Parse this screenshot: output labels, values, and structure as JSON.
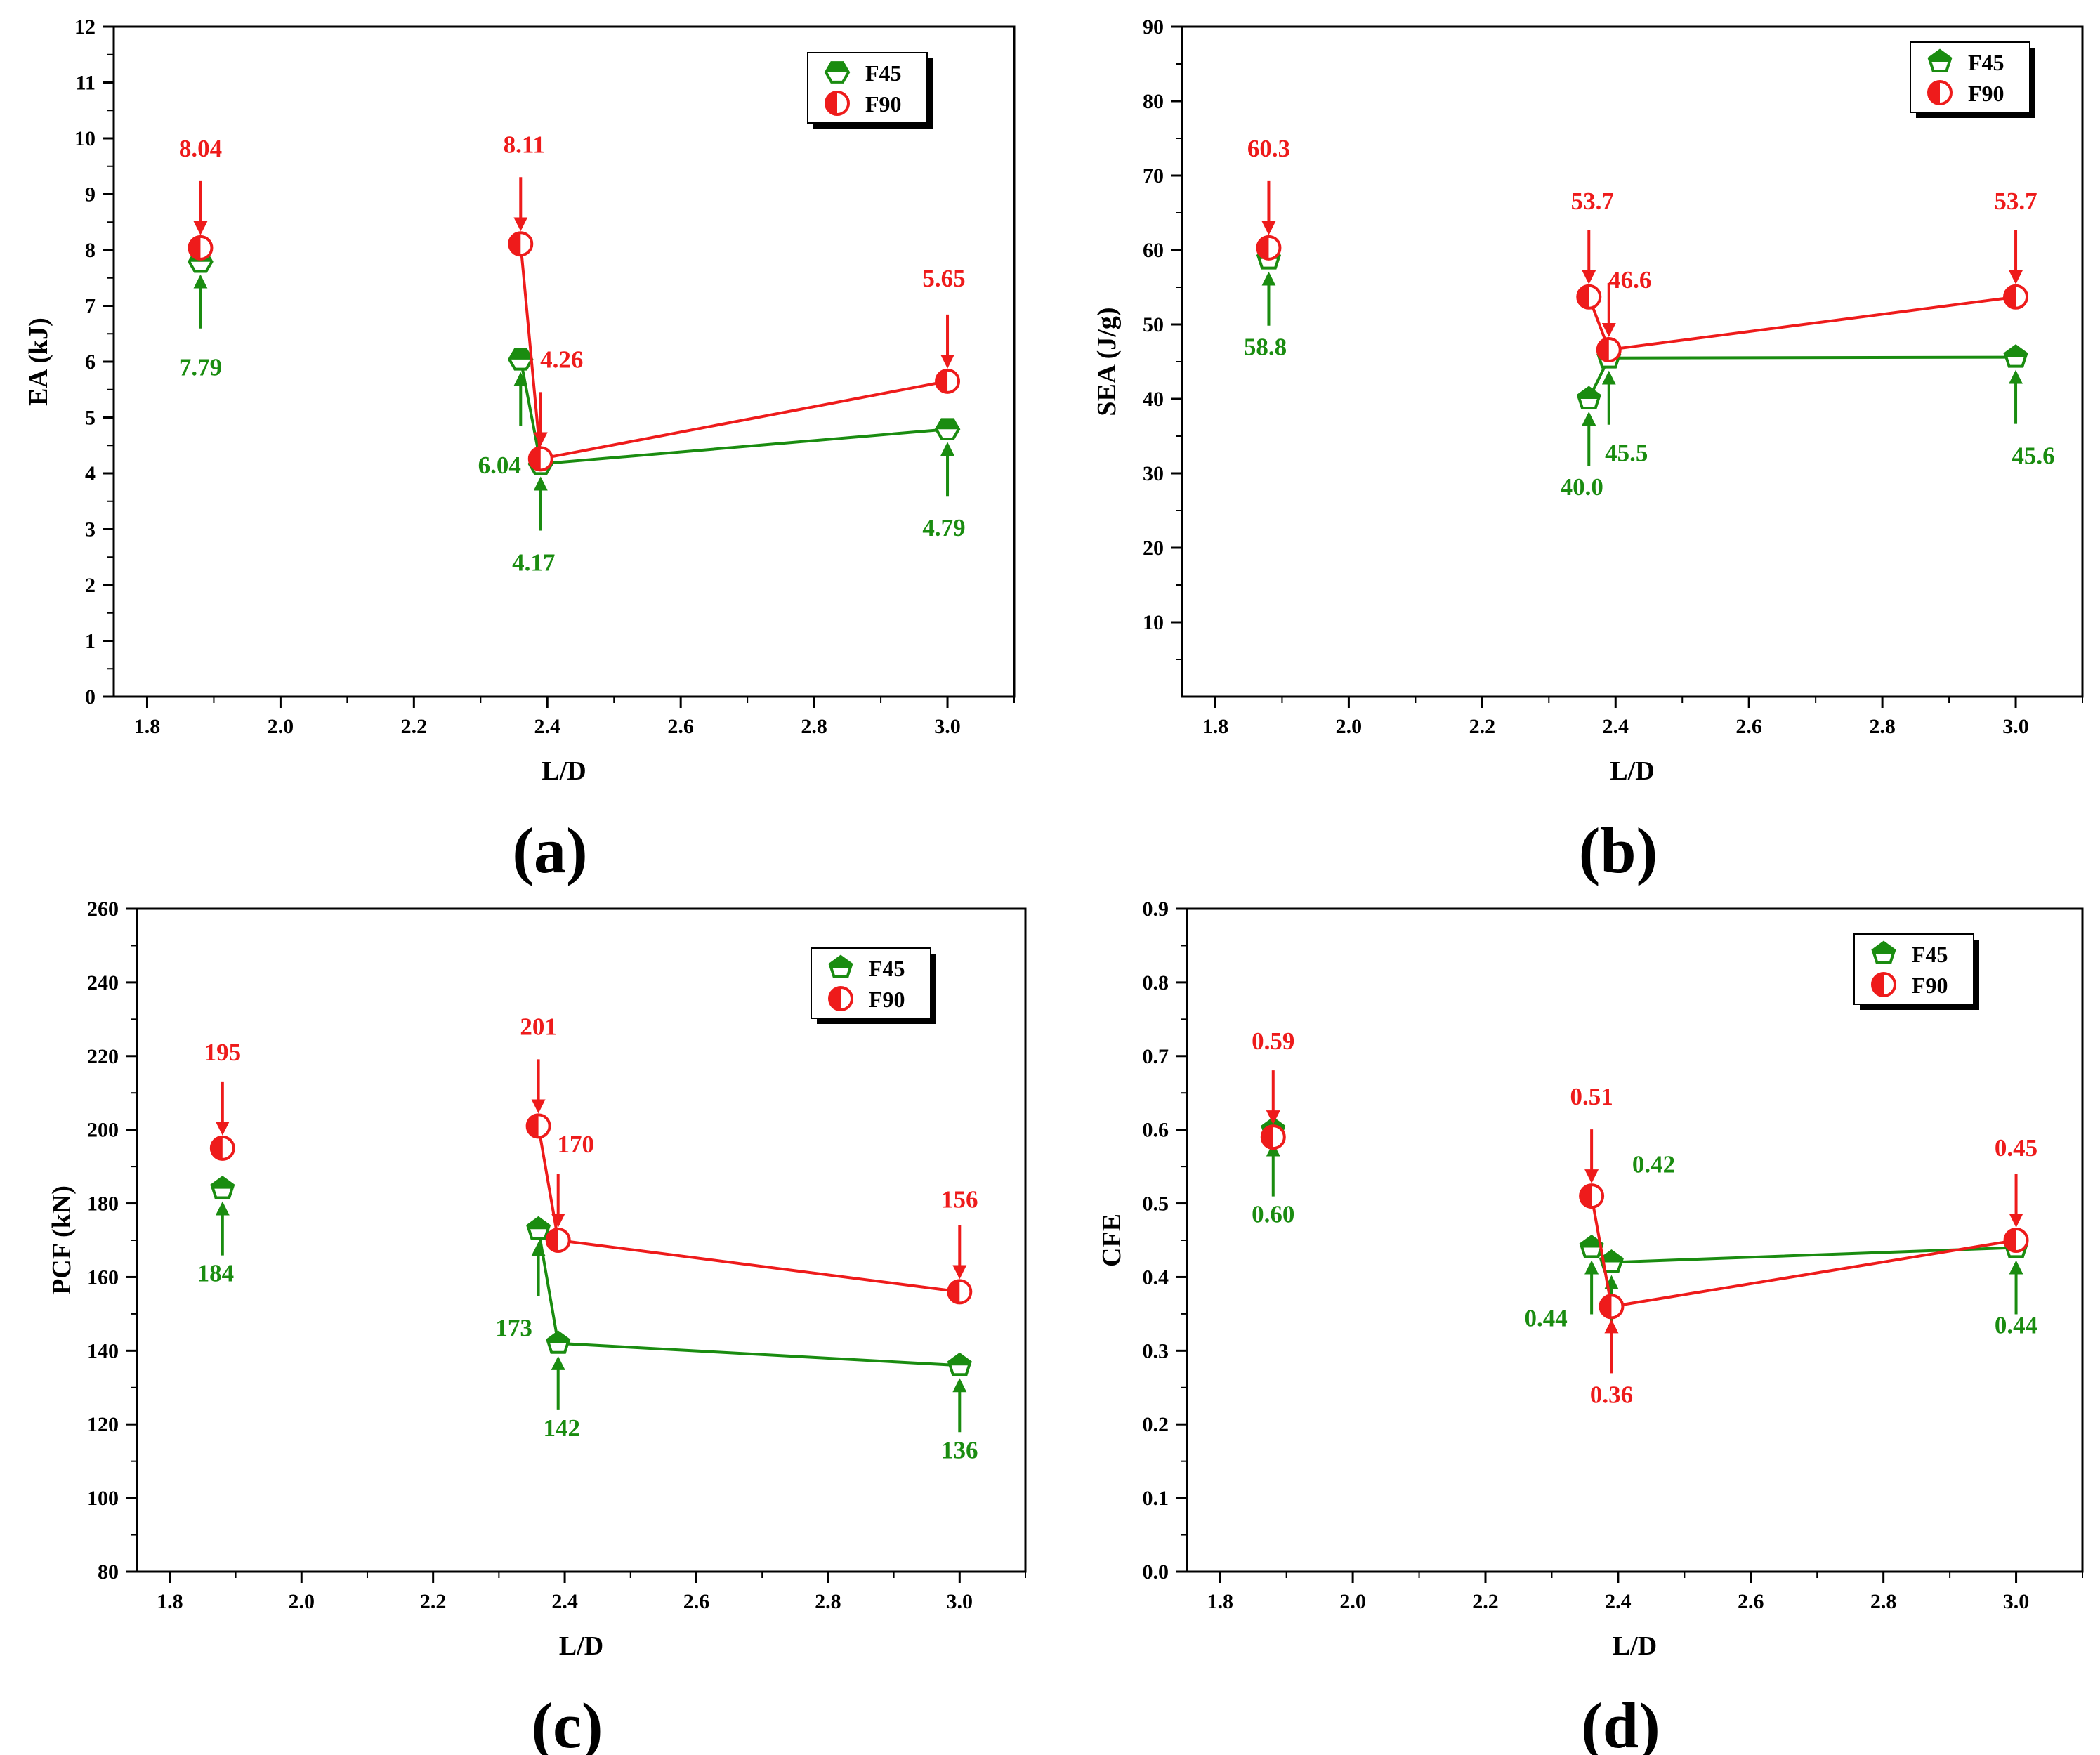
{
  "colors": {
    "F45": "#1a8c10",
    "F90": "#ee1b1b"
  },
  "chart_data": [
    {
      "type": "line",
      "panel_label": "(a)",
      "xlabel": "L/D",
      "ylabel": "EA (kJ)",
      "xlim": [
        1.75,
        3.1
      ],
      "ylim": [
        0,
        12
      ],
      "x_ticks": [
        "1.8",
        "2.0",
        "2.2",
        "2.4",
        "2.6",
        "2.8",
        "3.0"
      ],
      "y_ticks": [
        "0",
        "1",
        "2",
        "3",
        "4",
        "5",
        "6",
        "7",
        "8",
        "9",
        "10",
        "11",
        "12"
      ],
      "legend": [
        "F45",
        "F90"
      ],
      "series": [
        {
          "name": "F45",
          "marker": "hexagon",
          "x": [
            1.88,
            2.36,
            2.39,
            3.0
          ],
          "values": [
            7.79,
            6.04,
            4.17,
            4.79
          ],
          "labels": [
            "7.79",
            "6.04",
            "4.17",
            "4.79"
          ]
        },
        {
          "name": "F90",
          "marker": "circle",
          "x": [
            1.88,
            2.36,
            2.39,
            3.0
          ],
          "values": [
            8.04,
            8.11,
            4.26,
            5.65
          ],
          "labels": [
            "8.04",
            "8.11",
            "4.26",
            "5.65"
          ]
        }
      ]
    },
    {
      "type": "line",
      "panel_label": "(b)",
      "xlabel": "L/D",
      "ylabel": "SEA (J/g)",
      "xlim": [
        1.75,
        3.1
      ],
      "ylim": [
        0,
        90
      ],
      "x_ticks": [
        "1.8",
        "2.0",
        "2.2",
        "2.4",
        "2.6",
        "2.8",
        "3.0"
      ],
      "y_ticks": [
        "10",
        "20",
        "30",
        "40",
        "50",
        "60",
        "70",
        "80",
        "90"
      ],
      "legend": [
        "F45",
        "F90"
      ],
      "series": [
        {
          "name": "F45",
          "marker": "pentagon",
          "x": [
            1.88,
            2.36,
            2.39,
            3.0
          ],
          "values": [
            58.8,
            40.0,
            45.5,
            45.6
          ],
          "labels": [
            "58.8",
            "40.0",
            "45.5",
            "45.6"
          ]
        },
        {
          "name": "F90",
          "marker": "circle",
          "x": [
            1.88,
            2.36,
            2.39,
            3.0
          ],
          "values": [
            60.3,
            53.7,
            46.6,
            53.7
          ],
          "labels": [
            "60.3",
            "53.7",
            "46.6",
            "53.7"
          ]
        }
      ]
    },
    {
      "type": "line",
      "panel_label": "(c)",
      "xlabel": "L/D",
      "ylabel": "PCF (kN)",
      "xlim": [
        1.75,
        3.1
      ],
      "ylim": [
        80,
        260
      ],
      "x_ticks": [
        "1.8",
        "2.0",
        "2.2",
        "2.4",
        "2.6",
        "2.8",
        "3.0"
      ],
      "y_ticks": [
        "80",
        "100",
        "120",
        "140",
        "160",
        "180",
        "200",
        "220",
        "240",
        "260"
      ],
      "legend": [
        "F45",
        "F90"
      ],
      "series": [
        {
          "name": "F45",
          "marker": "pentagon",
          "x": [
            1.88,
            2.36,
            2.39,
            3.0
          ],
          "values": [
            184,
            173,
            142,
            136
          ],
          "labels": [
            "184",
            "173",
            "142",
            "136"
          ]
        },
        {
          "name": "F90",
          "marker": "circle",
          "x": [
            1.88,
            2.36,
            2.39,
            3.0
          ],
          "values": [
            195,
            201,
            170,
            156
          ],
          "labels": [
            "195",
            "201",
            "170",
            "156"
          ]
        }
      ]
    },
    {
      "type": "line",
      "panel_label": "(d)",
      "xlabel": "L/D",
      "ylabel": "CFE",
      "xlim": [
        1.75,
        3.1
      ],
      "ylim": [
        0,
        0.9
      ],
      "x_ticks": [
        "1.8",
        "2.0",
        "2.2",
        "2.4",
        "2.6",
        "2.8",
        "3.0"
      ],
      "y_ticks": [
        "0.0",
        "0.1",
        "0.2",
        "0.3",
        "0.4",
        "0.5",
        "0.6",
        "0.7",
        "0.8",
        "0.9"
      ],
      "legend": [
        "F45",
        "F90"
      ],
      "series": [
        {
          "name": "F45",
          "marker": "pentagon",
          "x": [
            1.88,
            2.36,
            2.39,
            3.0
          ],
          "values": [
            0.6,
            0.44,
            0.42,
            0.44
          ],
          "labels": [
            "0.60",
            "0.44",
            "0.42",
            "0.44"
          ]
        },
        {
          "name": "F90",
          "marker": "circle",
          "x": [
            1.88,
            2.36,
            2.39,
            3.0
          ],
          "values": [
            0.59,
            0.51,
            0.36,
            0.45
          ],
          "labels": [
            "0.59",
            "0.51",
            "0.36",
            "0.45"
          ]
        }
      ]
    }
  ]
}
